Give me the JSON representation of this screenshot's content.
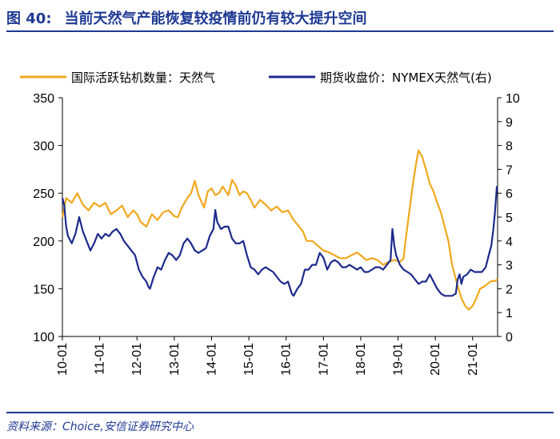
{
  "header": {
    "figure_label": "图 40:",
    "title": "当前天然气产能恢复较疫情前仍有较大提升空间"
  },
  "source": "资料来源：Choice,安信证券研究中心",
  "colors": {
    "rig": "#f0a81c",
    "price": "#1c2a8c",
    "accent": "#1f3a93"
  },
  "chart_data": {
    "type": "line",
    "title": "",
    "legend_position": "top",
    "grid": false,
    "x_tick_labels": [
      "10-01",
      "11-01",
      "12-01",
      "13-01",
      "14-01",
      "15-01",
      "16-01",
      "17-01",
      "18-01",
      "19-01",
      "20-01",
      "21-01"
    ],
    "xlim": [
      2010.0,
      2021.67
    ],
    "y_left": {
      "lim": [
        100,
        350
      ],
      "ticks": [
        100,
        150,
        200,
        250,
        300,
        350
      ]
    },
    "y_right": {
      "lim": [
        0,
        10
      ],
      "ticks": [
        0,
        1,
        2,
        3,
        4,
        5,
        6,
        7,
        8,
        9,
        10
      ]
    },
    "series": [
      {
        "name": "国际活跃钻机数量：天然气",
        "axis": "left",
        "color": "#f0a81c",
        "points": [
          [
            2010.0,
            225
          ],
          [
            2010.1,
            245
          ],
          [
            2010.25,
            240
          ],
          [
            2010.4,
            250
          ],
          [
            2010.55,
            238
          ],
          [
            2010.7,
            232
          ],
          [
            2010.85,
            240
          ],
          [
            2011.0,
            236
          ],
          [
            2011.15,
            240
          ],
          [
            2011.3,
            228
          ],
          [
            2011.45,
            232
          ],
          [
            2011.6,
            237
          ],
          [
            2011.75,
            225
          ],
          [
            2011.9,
            232
          ],
          [
            2012.0,
            228
          ],
          [
            2012.1,
            220
          ],
          [
            2012.25,
            215
          ],
          [
            2012.4,
            228
          ],
          [
            2012.55,
            222
          ],
          [
            2012.7,
            230
          ],
          [
            2012.85,
            232
          ],
          [
            2013.0,
            226
          ],
          [
            2013.1,
            225
          ],
          [
            2013.2,
            235
          ],
          [
            2013.35,
            245
          ],
          [
            2013.45,
            250
          ],
          [
            2013.55,
            263
          ],
          [
            2013.65,
            248
          ],
          [
            2013.8,
            235
          ],
          [
            2013.9,
            252
          ],
          [
            2014.0,
            255
          ],
          [
            2014.1,
            248
          ],
          [
            2014.2,
            250
          ],
          [
            2014.3,
            257
          ],
          [
            2014.45,
            248
          ],
          [
            2014.55,
            264
          ],
          [
            2014.65,
            258
          ],
          [
            2014.75,
            248
          ],
          [
            2014.85,
            252
          ],
          [
            2014.95,
            250
          ],
          [
            2015.05,
            243
          ],
          [
            2015.15,
            235
          ],
          [
            2015.3,
            243
          ],
          [
            2015.45,
            238
          ],
          [
            2015.6,
            232
          ],
          [
            2015.75,
            236
          ],
          [
            2015.9,
            230
          ],
          [
            2016.05,
            232
          ],
          [
            2016.2,
            222
          ],
          [
            2016.35,
            215
          ],
          [
            2016.45,
            210
          ],
          [
            2016.55,
            200
          ],
          [
            2016.7,
            200
          ],
          [
            2016.85,
            195
          ],
          [
            2017.0,
            190
          ],
          [
            2017.15,
            188
          ],
          [
            2017.3,
            185
          ],
          [
            2017.45,
            182
          ],
          [
            2017.6,
            182
          ],
          [
            2017.75,
            185
          ],
          [
            2017.9,
            188
          ],
          [
            2018.0,
            185
          ],
          [
            2018.15,
            180
          ],
          [
            2018.3,
            182
          ],
          [
            2018.45,
            180
          ],
          [
            2018.6,
            175
          ],
          [
            2018.75,
            178
          ],
          [
            2018.9,
            180
          ],
          [
            2019.05,
            178
          ],
          [
            2019.15,
            182
          ],
          [
            2019.2,
            200
          ],
          [
            2019.3,
            230
          ],
          [
            2019.4,
            260
          ],
          [
            2019.48,
            280
          ],
          [
            2019.55,
            295
          ],
          [
            2019.65,
            288
          ],
          [
            2019.75,
            275
          ],
          [
            2019.85,
            260
          ],
          [
            2019.95,
            252
          ],
          [
            2020.05,
            240
          ],
          [
            2020.15,
            230
          ],
          [
            2020.25,
            215
          ],
          [
            2020.35,
            200
          ],
          [
            2020.45,
            175
          ],
          [
            2020.55,
            160
          ],
          [
            2020.62,
            150
          ],
          [
            2020.7,
            140
          ],
          [
            2020.8,
            132
          ],
          [
            2020.9,
            128
          ],
          [
            2021.0,
            132
          ],
          [
            2021.1,
            140
          ],
          [
            2021.2,
            150
          ],
          [
            2021.3,
            152
          ],
          [
            2021.4,
            155
          ],
          [
            2021.5,
            158
          ],
          [
            2021.6,
            158
          ],
          [
            2021.67,
            160
          ]
        ]
      },
      {
        "name": "期货收盘价：NYMEX天然气(右)",
        "axis": "right",
        "color": "#1c2a8c",
        "points": [
          [
            2010.0,
            5.8
          ],
          [
            2010.05,
            5.5
          ],
          [
            2010.1,
            4.6
          ],
          [
            2010.15,
            4.2
          ],
          [
            2010.25,
            3.9
          ],
          [
            2010.35,
            4.3
          ],
          [
            2010.45,
            5.0
          ],
          [
            2010.55,
            4.4
          ],
          [
            2010.65,
            4.0
          ],
          [
            2010.75,
            3.6
          ],
          [
            2010.85,
            3.9
          ],
          [
            2010.95,
            4.3
          ],
          [
            2011.05,
            4.1
          ],
          [
            2011.15,
            4.3
          ],
          [
            2011.25,
            4.2
          ],
          [
            2011.35,
            4.4
          ],
          [
            2011.45,
            4.5
          ],
          [
            2011.55,
            4.3
          ],
          [
            2011.65,
            4.0
          ],
          [
            2011.75,
            3.8
          ],
          [
            2011.85,
            3.6
          ],
          [
            2011.95,
            3.4
          ],
          [
            2012.05,
            2.8
          ],
          [
            2012.15,
            2.5
          ],
          [
            2012.25,
            2.3
          ],
          [
            2012.3,
            2.1
          ],
          [
            2012.35,
            2.0
          ],
          [
            2012.45,
            2.5
          ],
          [
            2012.55,
            2.9
          ],
          [
            2012.65,
            2.8
          ],
          [
            2012.75,
            3.2
          ],
          [
            2012.85,
            3.5
          ],
          [
            2012.95,
            3.4
          ],
          [
            2013.05,
            3.2
          ],
          [
            2013.15,
            3.4
          ],
          [
            2013.25,
            3.9
          ],
          [
            2013.35,
            4.1
          ],
          [
            2013.45,
            3.9
          ],
          [
            2013.55,
            3.6
          ],
          [
            2013.65,
            3.5
          ],
          [
            2013.75,
            3.6
          ],
          [
            2013.85,
            3.7
          ],
          [
            2013.95,
            4.2
          ],
          [
            2014.05,
            4.5
          ],
          [
            2014.1,
            5.3
          ],
          [
            2014.15,
            4.8
          ],
          [
            2014.25,
            4.5
          ],
          [
            2014.35,
            4.6
          ],
          [
            2014.45,
            4.6
          ],
          [
            2014.55,
            4.1
          ],
          [
            2014.65,
            3.9
          ],
          [
            2014.75,
            3.9
          ],
          [
            2014.85,
            4.0
          ],
          [
            2014.95,
            3.4
          ],
          [
            2015.05,
            2.9
          ],
          [
            2015.15,
            2.8
          ],
          [
            2015.25,
            2.6
          ],
          [
            2015.35,
            2.8
          ],
          [
            2015.45,
            2.9
          ],
          [
            2015.55,
            2.8
          ],
          [
            2015.65,
            2.7
          ],
          [
            2015.75,
            2.5
          ],
          [
            2015.85,
            2.3
          ],
          [
            2015.95,
            2.2
          ],
          [
            2016.05,
            2.3
          ],
          [
            2016.15,
            1.8
          ],
          [
            2016.2,
            1.7
          ],
          [
            2016.3,
            2.0
          ],
          [
            2016.4,
            2.2
          ],
          [
            2016.5,
            2.8
          ],
          [
            2016.6,
            2.8
          ],
          [
            2016.7,
            3.0
          ],
          [
            2016.8,
            3.0
          ],
          [
            2016.9,
            3.5
          ],
          [
            2017.0,
            3.3
          ],
          [
            2017.1,
            2.8
          ],
          [
            2017.2,
            3.1
          ],
          [
            2017.3,
            3.2
          ],
          [
            2017.4,
            3.1
          ],
          [
            2017.5,
            2.9
          ],
          [
            2017.6,
            2.9
          ],
          [
            2017.7,
            3.0
          ],
          [
            2017.8,
            2.9
          ],
          [
            2017.9,
            2.8
          ],
          [
            2018.0,
            2.9
          ],
          [
            2018.1,
            2.7
          ],
          [
            2018.2,
            2.7
          ],
          [
            2018.3,
            2.8
          ],
          [
            2018.4,
            2.9
          ],
          [
            2018.5,
            2.9
          ],
          [
            2018.6,
            2.8
          ],
          [
            2018.7,
            3.0
          ],
          [
            2018.8,
            3.2
          ],
          [
            2018.85,
            4.5
          ],
          [
            2018.9,
            3.8
          ],
          [
            2018.95,
            3.4
          ],
          [
            2019.05,
            3.0
          ],
          [
            2019.15,
            2.8
          ],
          [
            2019.25,
            2.7
          ],
          [
            2019.35,
            2.6
          ],
          [
            2019.45,
            2.4
          ],
          [
            2019.55,
            2.2
          ],
          [
            2019.65,
            2.3
          ],
          [
            2019.75,
            2.3
          ],
          [
            2019.85,
            2.6
          ],
          [
            2019.95,
            2.3
          ],
          [
            2020.05,
            2.0
          ],
          [
            2020.15,
            1.8
          ],
          [
            2020.25,
            1.7
          ],
          [
            2020.35,
            1.7
          ],
          [
            2020.45,
            1.7
          ],
          [
            2020.55,
            1.8
          ],
          [
            2020.6,
            2.4
          ],
          [
            2020.65,
            2.6
          ],
          [
            2020.7,
            2.2
          ],
          [
            2020.75,
            2.5
          ],
          [
            2020.85,
            2.6
          ],
          [
            2020.95,
            2.8
          ],
          [
            2021.05,
            2.7
          ],
          [
            2021.15,
            2.7
          ],
          [
            2021.25,
            2.7
          ],
          [
            2021.35,
            2.9
          ],
          [
            2021.45,
            3.5
          ],
          [
            2021.5,
            3.8
          ],
          [
            2021.55,
            4.4
          ],
          [
            2021.6,
            5.2
          ],
          [
            2021.65,
            6.3
          ]
        ]
      }
    ]
  }
}
